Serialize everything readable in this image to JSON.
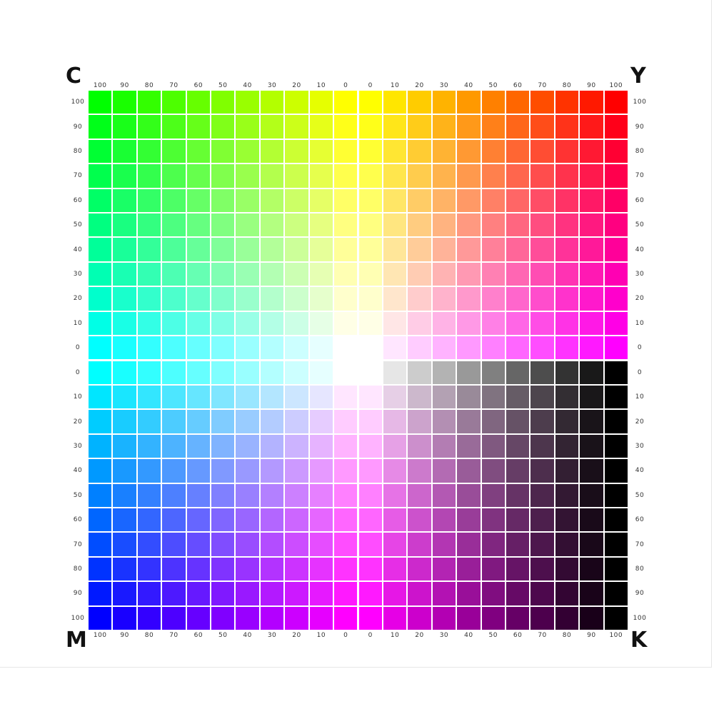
{
  "chart_data": {
    "type": "heatmap",
    "title": "",
    "corner_labels": {
      "top_left": "C",
      "top_right": "Y",
      "bottom_left": "M",
      "bottom_right": "K"
    },
    "column_ticks": [
      "100",
      "90",
      "80",
      "70",
      "60",
      "50",
      "40",
      "30",
      "20",
      "10",
      "0",
      "0",
      "10",
      "20",
      "30",
      "40",
      "50",
      "60",
      "70",
      "80",
      "90",
      "100"
    ],
    "row_ticks": [
      "100",
      "90",
      "80",
      "70",
      "60",
      "50",
      "40",
      "30",
      "20",
      "10",
      "0",
      "0",
      "10",
      "20",
      "30",
      "40",
      "50",
      "60",
      "70",
      "80",
      "90",
      "100"
    ],
    "levels_percent": [
      0,
      10,
      20,
      30,
      40,
      50,
      60,
      70,
      80,
      90,
      100
    ],
    "quadrants": [
      {
        "position": "top-left",
        "columns": "C",
        "rows": "Y",
        "column_order": "100 to 0",
        "row_order": "100 to 0"
      },
      {
        "position": "top-right",
        "columns": "M",
        "rows": "Y",
        "column_order": "0 to 100",
        "row_order": "100 to 0"
      },
      {
        "position": "bottom-left",
        "columns": "C",
        "rows": "M",
        "column_order": "100 to 0",
        "row_order": "0 to 100"
      },
      {
        "position": "bottom-right",
        "columns": "K",
        "rows": "M",
        "column_order": "0 to 100",
        "row_order": "0 to 100"
      }
    ],
    "color_model": "CMYK",
    "grid_line_color": "#f2f2f2"
  }
}
